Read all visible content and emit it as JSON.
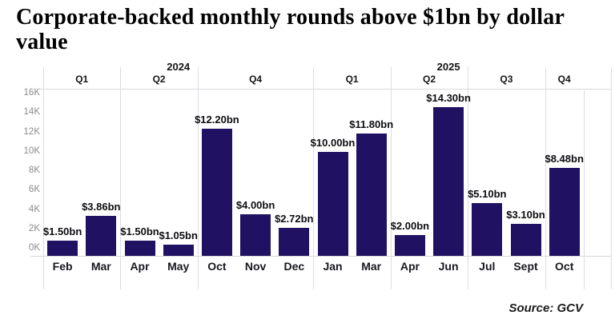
{
  "chart_data": {
    "type": "bar",
    "title": "Corporate-backed monthly rounds above $1bn by dollar value",
    "source": "Source: GCV",
    "bar_color": "#211163",
    "ylim": [
      0,
      16
    ],
    "y_axis_ticks": [
      "16K",
      "14K",
      "12K",
      "10K",
      "8K",
      "6K",
      "4K",
      "2K",
      "0K"
    ],
    "legend": "none",
    "grid": "vertical-quarter-dividers-only",
    "years": [
      {
        "label": "2024",
        "quarters": [
          {
            "label": "Q1",
            "months": [
              {
                "label": "Feb",
                "value_bn": 1.5,
                "value_label": "$1.50bn"
              },
              {
                "label": "Mar",
                "value_bn": 3.86,
                "value_label": "$3.86bn"
              }
            ]
          },
          {
            "label": "Q2",
            "months": [
              {
                "label": "Apr",
                "value_bn": 1.5,
                "value_label": "$1.50bn"
              },
              {
                "label": "May",
                "value_bn": 1.05,
                "value_label": "$1.05bn"
              }
            ]
          },
          {
            "label": "Q4",
            "months": [
              {
                "label": "Oct",
                "value_bn": 12.2,
                "value_label": "$12.20bn"
              },
              {
                "label": "Nov",
                "value_bn": 4.0,
                "value_label": "$4.00bn"
              },
              {
                "label": "Dec",
                "value_bn": 2.72,
                "value_label": "$2.72bn"
              }
            ]
          }
        ]
      },
      {
        "label": "2025",
        "quarters": [
          {
            "label": "Q1",
            "months": [
              {
                "label": "Jan",
                "value_bn": 10.0,
                "value_label": "$10.00bn"
              },
              {
                "label": "Mar",
                "value_bn": 11.8,
                "value_label": "$11.80bn"
              }
            ]
          },
          {
            "label": "Q2",
            "months": [
              {
                "label": "Apr",
                "value_bn": 2.0,
                "value_label": "$2.00bn"
              },
              {
                "label": "Jun",
                "value_bn": 14.3,
                "value_label": "$14.30bn"
              }
            ]
          },
          {
            "label": "Q3",
            "months": [
              {
                "label": "Jul",
                "value_bn": 5.1,
                "value_label": "$5.10bn"
              },
              {
                "label": "Sept",
                "value_bn": 3.1,
                "value_label": "$3.10bn"
              }
            ]
          },
          {
            "label": "Q4",
            "months": [
              {
                "label": "Oct",
                "value_bn": 8.48,
                "value_label": "$8.48bn"
              }
            ]
          }
        ]
      }
    ]
  }
}
